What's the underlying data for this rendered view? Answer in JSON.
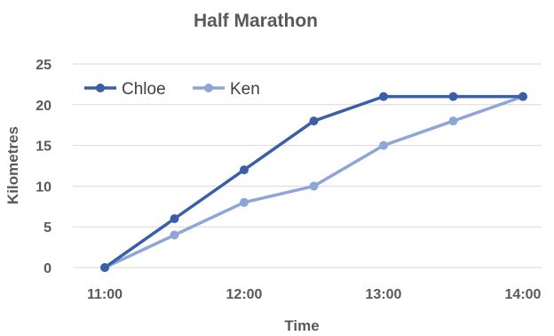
{
  "chart_data": {
    "type": "line",
    "title": "Half Marathon",
    "xlabel": "Time",
    "ylabel": "Kilometres",
    "x": [
      "11:00",
      "11:30",
      "12:00",
      "12:30",
      "13:00",
      "13:30",
      "14:00"
    ],
    "x_ticks": [
      "11:00",
      "12:00",
      "13:00",
      "14:00"
    ],
    "y_ticks": [
      0,
      5,
      10,
      15,
      20,
      25
    ],
    "ylim": [
      0,
      25
    ],
    "grid": true,
    "legend_position": "top-left",
    "series": [
      {
        "name": "Chloe",
        "color": "#3a5ea8",
        "values": [
          0,
          6,
          12,
          18,
          21,
          21,
          21
        ]
      },
      {
        "name": "Ken",
        "color": "#8ea5d8",
        "values": [
          0,
          4,
          8,
          10,
          15,
          18,
          21
        ]
      }
    ]
  }
}
